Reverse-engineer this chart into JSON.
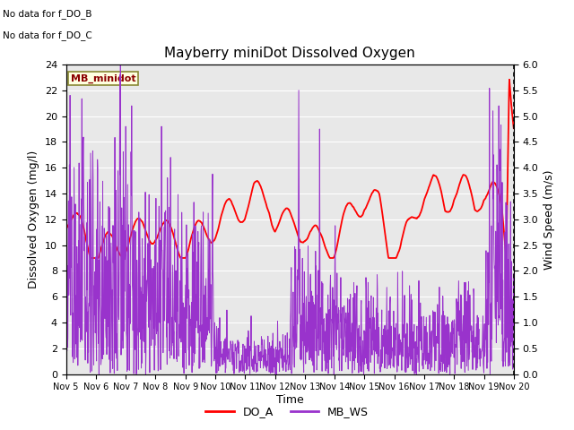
{
  "title": "Mayberry miniDot Dissolved Oxygen",
  "xlabel": "Time",
  "ylabel_left": "Dissolved Oxygen (mg/l)",
  "ylabel_right": "Wind Speed (m/s)",
  "top_text_1": "No data for f_DO_B",
  "top_text_2": "No data for f_DO_C",
  "box_label": "MB_minidot",
  "legend_entries": [
    "DO_A",
    "MB_WS"
  ],
  "do_color": "#ff0000",
  "ws_color": "#9933cc",
  "ylim_left": [
    0,
    24
  ],
  "ylim_right": [
    0.0,
    6.0
  ],
  "yticks_left": [
    0,
    2,
    4,
    6,
    8,
    10,
    12,
    14,
    16,
    18,
    20,
    22,
    24
  ],
  "yticks_right": [
    0.0,
    0.5,
    1.0,
    1.5,
    2.0,
    2.5,
    3.0,
    3.5,
    4.0,
    4.5,
    5.0,
    5.5,
    6.0
  ],
  "xtick_labels": [
    "Nov 5",
    "Nov 6",
    "Nov 7",
    "Nov 8",
    "Nov 9",
    "Nov 10",
    "Nov 11",
    "Nov 12",
    "Nov 13",
    "Nov 14",
    "Nov 15",
    "Nov 16",
    "Nov 17",
    "Nov 18",
    "Nov 19",
    "Nov 20"
  ],
  "bg_color": "#e8e8e8",
  "fig_color": "#ffffff",
  "grid_color": "#ffffff"
}
